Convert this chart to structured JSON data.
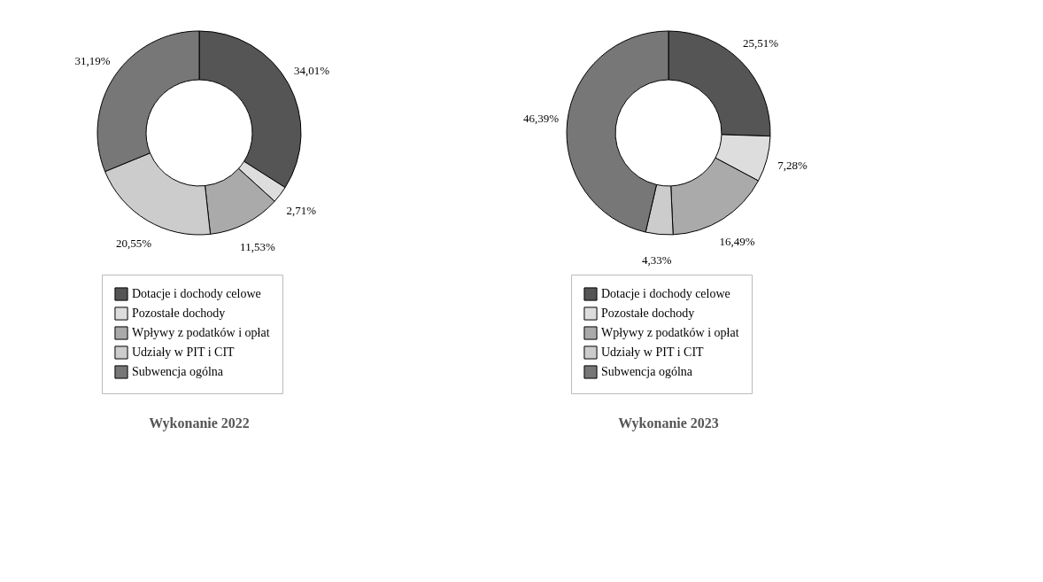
{
  "chart_data": [
    {
      "type": "donut",
      "title": "Wykonanie 2022",
      "categories": [
        "Dotacje i dochody celowe",
        "Pozostałe dochody",
        "Wpływy z podatków i opłat",
        "Udziały w PIT i CIT",
        "Subwencja ogólna"
      ],
      "values": [
        34.01,
        2.71,
        11.53,
        20.55,
        31.19
      ],
      "value_labels": [
        "34,01%",
        "2,71%",
        "11,53%",
        "20,55%",
        "31,19%"
      ],
      "colors": [
        "#555555",
        "#dddddd",
        "#aaaaaa",
        "#cccccc",
        "#777777"
      ],
      "legend": "bottom"
    },
    {
      "type": "donut",
      "title": "Wykonanie 2023",
      "categories": [
        "Dotacje i dochody celowe",
        "Pozostałe dochody",
        "Wpływy z podatków i opłat",
        "Udziały w PIT i CIT",
        "Subwencja ogólna"
      ],
      "values": [
        25.51,
        7.28,
        16.49,
        4.33,
        46.39
      ],
      "value_labels": [
        "25,51%",
        "7,28%",
        "16,49%",
        "4,33%",
        "46,39%"
      ],
      "colors": [
        "#555555",
        "#dddddd",
        "#aaaaaa",
        "#cccccc",
        "#777777"
      ],
      "legend": "bottom"
    }
  ]
}
